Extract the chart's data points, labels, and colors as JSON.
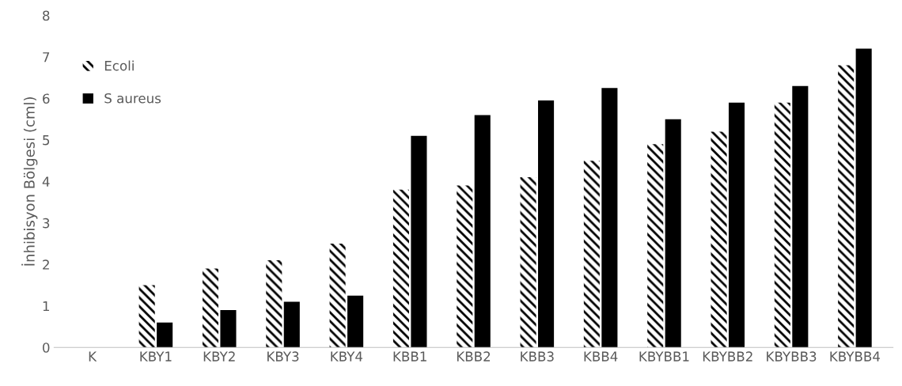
{
  "chart_data": {
    "type": "bar",
    "ylabel": "İnhibisyon Bölgesi (cml)",
    "categories": [
      "K",
      "KBY1",
      "KBY2",
      "KBY3",
      "KBY4",
      "KBB1",
      "KBB2",
      "KBB3",
      "KBB4",
      "KBYBB1",
      "KBYBB2",
      "KBYBB3",
      "KBYBB4"
    ],
    "series": [
      {
        "name": "Ecoli",
        "color": "#000000",
        "values": [
          0,
          1.5,
          1.9,
          2.1,
          2.5,
          3.8,
          3.9,
          4.1,
          4.5,
          4.9,
          5.2,
          5.9,
          6.8
        ]
      },
      {
        "name": "S aureus",
        "color": "#000000",
        "values": [
          0,
          0.6,
          0.9,
          1.1,
          1.25,
          5.1,
          5.6,
          5.95,
          6.25,
          5.5,
          5.9,
          6.3,
          7.2
        ]
      }
    ],
    "ylim": [
      0,
      8
    ],
    "yticks": [
      0,
      1,
      2,
      3,
      4,
      5,
      6,
      7,
      8
    ],
    "grid": false,
    "legend": "top left"
  }
}
